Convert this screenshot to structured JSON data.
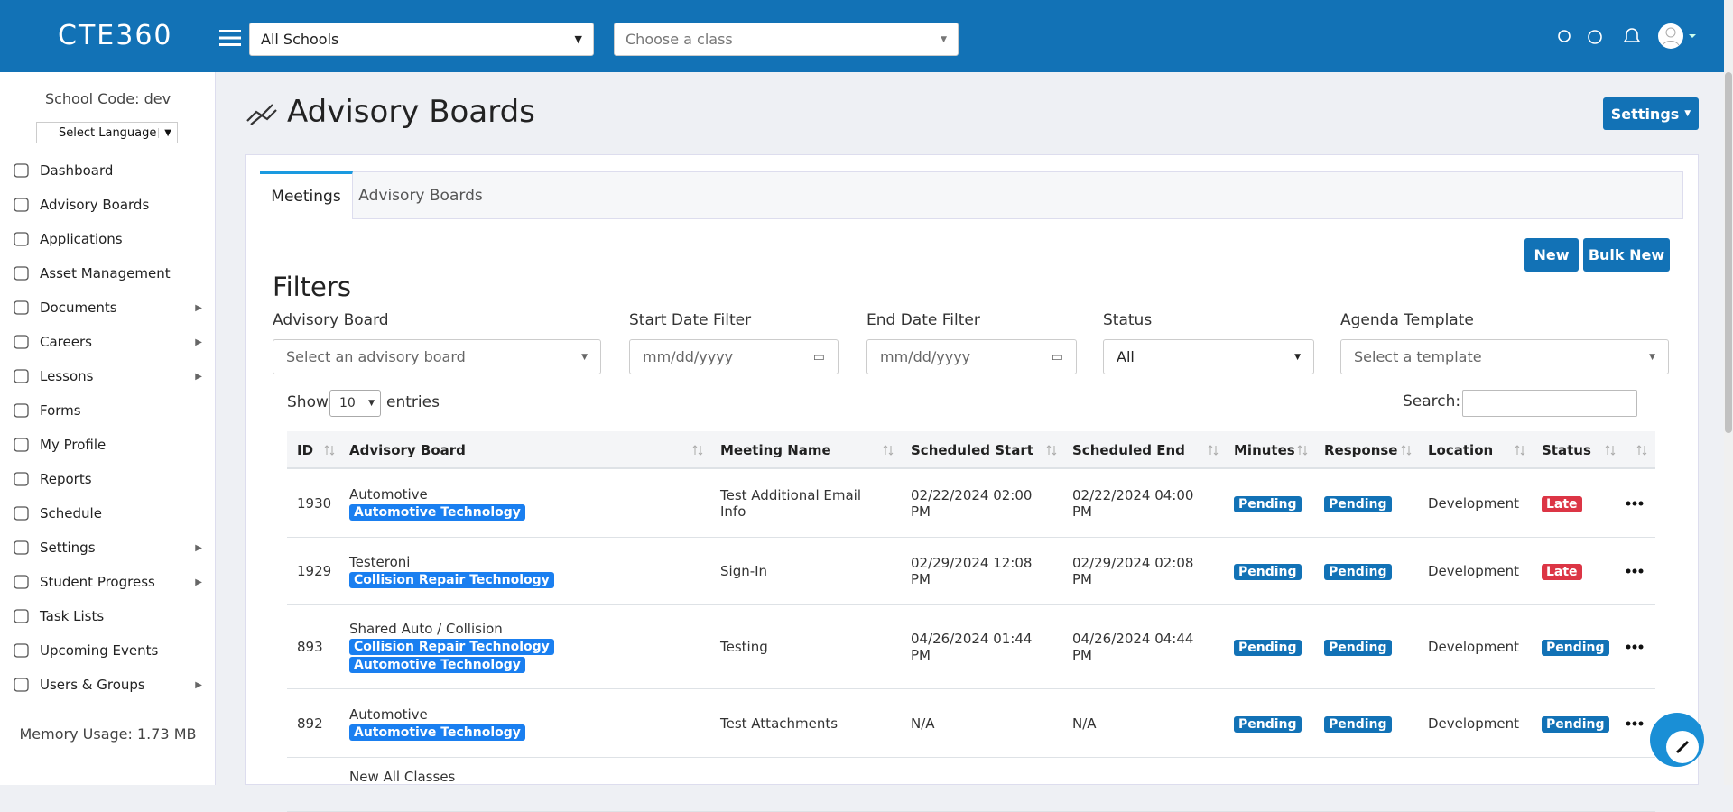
{
  "header": {
    "logo": "CTE360",
    "school_select": "All Schools",
    "class_select": "Choose a class"
  },
  "sidebar": {
    "school_code": "School Code: dev",
    "language": "Select Language",
    "nav": [
      {
        "label": "Dashboard",
        "has_submenu": false
      },
      {
        "label": "Advisory Boards",
        "has_submenu": false
      },
      {
        "label": "Applications",
        "has_submenu": false
      },
      {
        "label": "Asset Management",
        "has_submenu": false
      },
      {
        "label": "Documents",
        "has_submenu": true
      },
      {
        "label": "Careers",
        "has_submenu": true
      },
      {
        "label": "Lessons",
        "has_submenu": true
      },
      {
        "label": "Forms",
        "has_submenu": false
      },
      {
        "label": "My Profile",
        "has_submenu": false
      },
      {
        "label": "Reports",
        "has_submenu": false
      },
      {
        "label": "Schedule",
        "has_submenu": false
      },
      {
        "label": "Settings",
        "has_submenu": true
      },
      {
        "label": "Student Progress",
        "has_submenu": true
      },
      {
        "label": "Task Lists",
        "has_submenu": false
      },
      {
        "label": "Upcoming Events",
        "has_submenu": false
      },
      {
        "label": "Users & Groups",
        "has_submenu": true
      }
    ],
    "memory": "Memory Usage: 1.73 MB"
  },
  "main": {
    "title": "Advisory Boards",
    "settings_button": "Settings",
    "tabs": [
      "Meetings",
      "Advisory Boards"
    ],
    "active_tab": 0,
    "buttons": [
      "New",
      "Bulk New"
    ],
    "filters_title": "Filters",
    "filters": [
      {
        "label": "Advisory Board",
        "placeholder": "Select an advisory board"
      },
      {
        "label": "Start Date Filter",
        "placeholder": "mm/dd/yyyy"
      },
      {
        "label": "End Date Filter",
        "placeholder": "mm/dd/yyyy"
      },
      {
        "label": "Status",
        "placeholder": "All"
      },
      {
        "label": "Agenda Template",
        "placeholder": "Select a template"
      }
    ],
    "show": "Show",
    "entries_value": "10",
    "entries": "entries",
    "search": "Search:"
  },
  "table": {
    "columns": [
      "ID",
      "Advisory Board",
      "Meeting Name",
      "Scheduled Start",
      "Scheduled End",
      "Minutes",
      "Response",
      "Location",
      "Status"
    ],
    "rows": [
      {
        "id": "1930",
        "board": "Automotive",
        "classes": [
          "Automotive Technology"
        ],
        "meeting": "Test Additional Email Info",
        "start": "02/22/2024 02:00 PM",
        "end": "02/22/2024 04:00 PM",
        "minutes": "Pending",
        "response": "Pending",
        "location": "Development",
        "status": "Late"
      },
      {
        "id": "1929",
        "board": "Testeroni",
        "classes": [
          "Collision Repair Technology"
        ],
        "meeting": "Sign-In",
        "start": "02/29/2024 12:08 PM",
        "end": "02/29/2024 02:08 PM",
        "minutes": "Pending",
        "response": "Pending",
        "location": "Development",
        "status": "Late"
      },
      {
        "id": "893",
        "board": "Shared Auto / Collision",
        "classes": [
          "Collision Repair Technology",
          "Automotive Technology"
        ],
        "meeting": "Testing",
        "start": "04/26/2024 01:44 PM",
        "end": "04/26/2024 04:44 PM",
        "minutes": "Pending",
        "response": "Pending",
        "location": "Development",
        "status": "Pending"
      },
      {
        "id": "892",
        "board": "Automotive",
        "classes": [
          "Automotive Technology"
        ],
        "meeting": "Test Attachments",
        "start": "N/A",
        "end": "N/A",
        "minutes": "Pending",
        "response": "Pending",
        "location": "Development",
        "status": "Pending"
      },
      {
        "board": "New All Classes"
      }
    ]
  }
}
